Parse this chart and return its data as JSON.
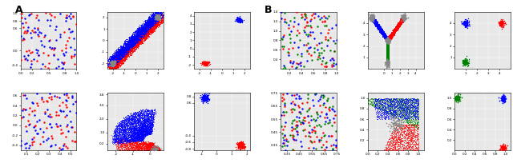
{
  "title_A": "A",
  "title_B": "B",
  "bg_color": "#e8e8e8",
  "gray": "#888888"
}
